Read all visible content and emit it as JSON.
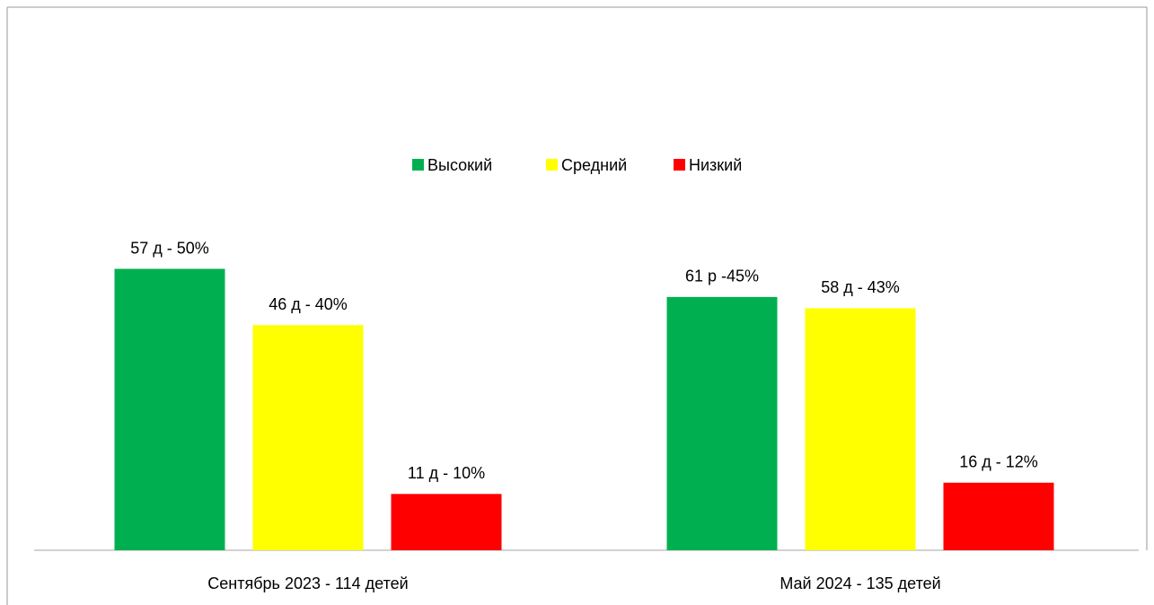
{
  "chart_data": {
    "type": "bar",
    "categories": [
      "Сентябрь 2023 - 114 детей",
      "Май 2024 - 135 детей"
    ],
    "series": [
      {
        "name": "Высокий",
        "color": "#00b050",
        "values": [
          50,
          45
        ],
        "value_labels": [
          "57 д - 50%",
          "61 р -45%"
        ]
      },
      {
        "name": "Средний",
        "color": "#ffff00",
        "values": [
          40,
          43
        ],
        "value_labels": [
          "46 д - 40%",
          "58 д - 43%"
        ]
      },
      {
        "name": "Низкий",
        "color": "#ff0000",
        "values": [
          10,
          12
        ],
        "value_labels": [
          "11 д - 10%",
          "16 д - 12%"
        ]
      }
    ],
    "legend": "top"
  }
}
